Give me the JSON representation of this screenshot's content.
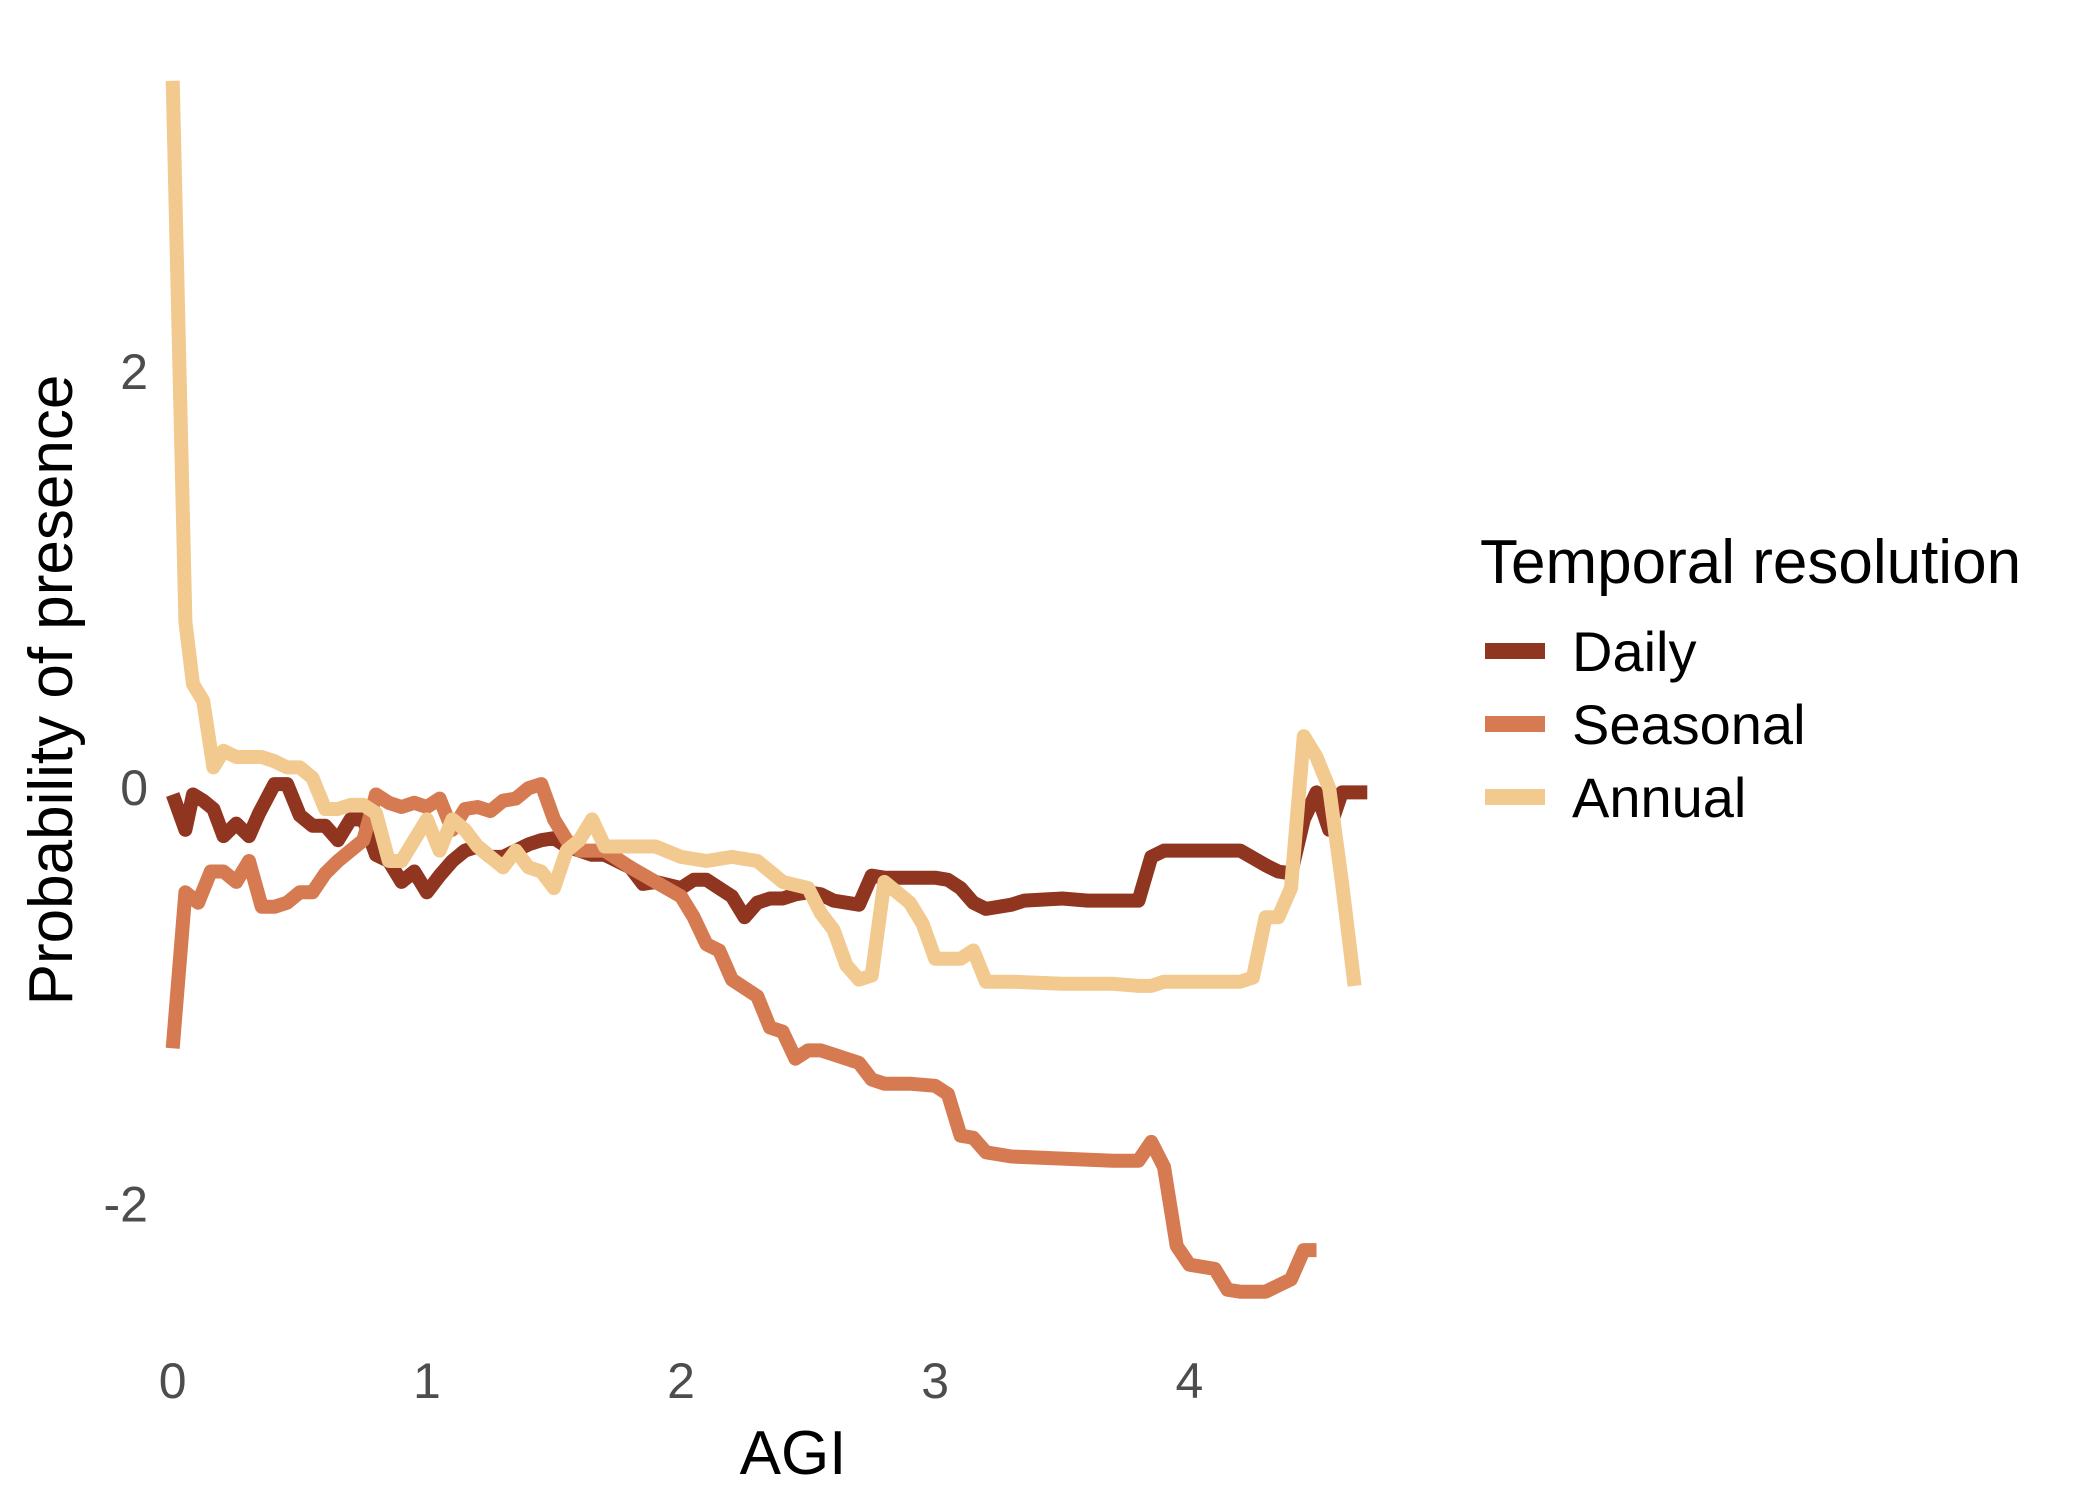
{
  "chart_data": {
    "type": "line",
    "title": "",
    "xlabel": "AGI",
    "ylabel": "Probability of presence",
    "xlim": [
      -0.05,
      4.75
    ],
    "ylim": [
      -2.7,
      3.5
    ],
    "x_ticks": [
      0,
      1,
      2,
      3,
      4
    ],
    "y_ticks": [
      -2,
      0,
      2
    ],
    "grid": false,
    "legend": {
      "title": "Temporal resolution",
      "position": "right"
    },
    "series": [
      {
        "name": "Daily",
        "color": "#8F3520",
        "points": [
          [
            0.0,
            -0.03
          ],
          [
            0.05,
            -0.2
          ],
          [
            0.08,
            -0.03
          ],
          [
            0.12,
            -0.06
          ],
          [
            0.16,
            -0.1
          ],
          [
            0.2,
            -0.23
          ],
          [
            0.25,
            -0.17
          ],
          [
            0.3,
            -0.23
          ],
          [
            0.34,
            -0.12
          ],
          [
            0.4,
            0.02
          ],
          [
            0.45,
            0.02
          ],
          [
            0.5,
            -0.13
          ],
          [
            0.55,
            -0.18
          ],
          [
            0.6,
            -0.18
          ],
          [
            0.65,
            -0.25
          ],
          [
            0.7,
            -0.15
          ],
          [
            0.75,
            -0.15
          ],
          [
            0.8,
            -0.32
          ],
          [
            0.85,
            -0.35
          ],
          [
            0.9,
            -0.45
          ],
          [
            0.95,
            -0.4
          ],
          [
            1.0,
            -0.5
          ],
          [
            1.05,
            -0.42
          ],
          [
            1.1,
            -0.35
          ],
          [
            1.15,
            -0.3
          ],
          [
            1.2,
            -0.28
          ],
          [
            1.25,
            -0.33
          ],
          [
            1.3,
            -0.33
          ],
          [
            1.35,
            -0.3
          ],
          [
            1.4,
            -0.27
          ],
          [
            1.45,
            -0.25
          ],
          [
            1.5,
            -0.24
          ],
          [
            1.55,
            -0.28
          ],
          [
            1.6,
            -0.3
          ],
          [
            1.65,
            -0.32
          ],
          [
            1.7,
            -0.32
          ],
          [
            1.8,
            -0.38
          ],
          [
            1.85,
            -0.46
          ],
          [
            1.9,
            -0.45
          ],
          [
            2.0,
            -0.48
          ],
          [
            2.05,
            -0.44
          ],
          [
            2.1,
            -0.44
          ],
          [
            2.2,
            -0.52
          ],
          [
            2.25,
            -0.62
          ],
          [
            2.3,
            -0.55
          ],
          [
            2.35,
            -0.53
          ],
          [
            2.4,
            -0.53
          ],
          [
            2.45,
            -0.51
          ],
          [
            2.5,
            -0.5
          ],
          [
            2.55,
            -0.51
          ],
          [
            2.6,
            -0.54
          ],
          [
            2.7,
            -0.56
          ],
          [
            2.75,
            -0.42
          ],
          [
            2.8,
            -0.43
          ],
          [
            2.9,
            -0.43
          ],
          [
            3.0,
            -0.43
          ],
          [
            3.05,
            -0.44
          ],
          [
            3.1,
            -0.48
          ],
          [
            3.15,
            -0.55
          ],
          [
            3.2,
            -0.58
          ],
          [
            3.3,
            -0.56
          ],
          [
            3.35,
            -0.54
          ],
          [
            3.5,
            -0.53
          ],
          [
            3.6,
            -0.54
          ],
          [
            3.8,
            -0.54
          ],
          [
            3.85,
            -0.33
          ],
          [
            3.9,
            -0.3
          ],
          [
            4.0,
            -0.3
          ],
          [
            4.1,
            -0.3
          ],
          [
            4.2,
            -0.3
          ],
          [
            4.3,
            -0.37
          ],
          [
            4.35,
            -0.4
          ],
          [
            4.4,
            -0.41
          ],
          [
            4.45,
            -0.15
          ],
          [
            4.5,
            -0.02
          ],
          [
            4.55,
            -0.2
          ],
          [
            4.6,
            -0.02
          ],
          [
            4.7,
            -0.02
          ]
        ]
      },
      {
        "name": "Seasonal",
        "color": "#D67A52",
        "points": [
          [
            0.0,
            -1.25
          ],
          [
            0.05,
            -0.5
          ],
          [
            0.1,
            -0.55
          ],
          [
            0.15,
            -0.4
          ],
          [
            0.2,
            -0.4
          ],
          [
            0.25,
            -0.45
          ],
          [
            0.3,
            -0.35
          ],
          [
            0.35,
            -0.57
          ],
          [
            0.4,
            -0.57
          ],
          [
            0.45,
            -0.55
          ],
          [
            0.5,
            -0.5
          ],
          [
            0.55,
            -0.5
          ],
          [
            0.6,
            -0.41
          ],
          [
            0.65,
            -0.35
          ],
          [
            0.7,
            -0.3
          ],
          [
            0.75,
            -0.25
          ],
          [
            0.8,
            -0.03
          ],
          [
            0.85,
            -0.07
          ],
          [
            0.9,
            -0.09
          ],
          [
            0.95,
            -0.07
          ],
          [
            1.0,
            -0.09
          ],
          [
            1.05,
            -0.05
          ],
          [
            1.1,
            -0.2
          ],
          [
            1.15,
            -0.1
          ],
          [
            1.2,
            -0.09
          ],
          [
            1.25,
            -0.11
          ],
          [
            1.3,
            -0.06
          ],
          [
            1.35,
            -0.05
          ],
          [
            1.4,
            0.0
          ],
          [
            1.45,
            0.02
          ],
          [
            1.5,
            -0.15
          ],
          [
            1.55,
            -0.25
          ],
          [
            1.6,
            -0.3
          ],
          [
            1.7,
            -0.3
          ],
          [
            1.8,
            -0.38
          ],
          [
            1.9,
            -0.45
          ],
          [
            2.0,
            -0.52
          ],
          [
            2.05,
            -0.62
          ],
          [
            2.1,
            -0.75
          ],
          [
            2.15,
            -0.78
          ],
          [
            2.2,
            -0.92
          ],
          [
            2.3,
            -1.0
          ],
          [
            2.35,
            -1.15
          ],
          [
            2.4,
            -1.17
          ],
          [
            2.45,
            -1.3
          ],
          [
            2.5,
            -1.26
          ],
          [
            2.55,
            -1.26
          ],
          [
            2.6,
            -1.28
          ],
          [
            2.7,
            -1.32
          ],
          [
            2.75,
            -1.4
          ],
          [
            2.8,
            -1.42
          ],
          [
            2.9,
            -1.42
          ],
          [
            3.0,
            -1.43
          ],
          [
            3.05,
            -1.47
          ],
          [
            3.1,
            -1.67
          ],
          [
            3.15,
            -1.68
          ],
          [
            3.2,
            -1.75
          ],
          [
            3.3,
            -1.77
          ],
          [
            3.5,
            -1.78
          ],
          [
            3.7,
            -1.79
          ],
          [
            3.8,
            -1.79
          ],
          [
            3.85,
            -1.7
          ],
          [
            3.9,
            -1.82
          ],
          [
            3.95,
            -2.2
          ],
          [
            4.0,
            -2.29
          ],
          [
            4.1,
            -2.31
          ],
          [
            4.15,
            -2.41
          ],
          [
            4.2,
            -2.42
          ],
          [
            4.3,
            -2.42
          ],
          [
            4.35,
            -2.39
          ],
          [
            4.4,
            -2.36
          ],
          [
            4.45,
            -2.22
          ],
          [
            4.5,
            -2.22
          ]
        ]
      },
      {
        "name": "Annual",
        "color": "#F2C98E",
        "points": [
          [
            0.0,
            3.4
          ],
          [
            0.05,
            0.8
          ],
          [
            0.08,
            0.5
          ],
          [
            0.12,
            0.42
          ],
          [
            0.16,
            0.1
          ],
          [
            0.2,
            0.18
          ],
          [
            0.25,
            0.15
          ],
          [
            0.3,
            0.15
          ],
          [
            0.35,
            0.15
          ],
          [
            0.4,
            0.13
          ],
          [
            0.45,
            0.1
          ],
          [
            0.5,
            0.1
          ],
          [
            0.55,
            0.05
          ],
          [
            0.6,
            -0.1
          ],
          [
            0.65,
            -0.1
          ],
          [
            0.7,
            -0.08
          ],
          [
            0.75,
            -0.08
          ],
          [
            0.8,
            -0.12
          ],
          [
            0.85,
            -0.35
          ],
          [
            0.9,
            -0.35
          ],
          [
            0.95,
            -0.25
          ],
          [
            1.0,
            -0.15
          ],
          [
            1.05,
            -0.3
          ],
          [
            1.1,
            -0.15
          ],
          [
            1.15,
            -0.2
          ],
          [
            1.2,
            -0.28
          ],
          [
            1.25,
            -0.33
          ],
          [
            1.3,
            -0.38
          ],
          [
            1.35,
            -0.3
          ],
          [
            1.4,
            -0.38
          ],
          [
            1.45,
            -0.4
          ],
          [
            1.5,
            -0.48
          ],
          [
            1.55,
            -0.3
          ],
          [
            1.6,
            -0.25
          ],
          [
            1.65,
            -0.15
          ],
          [
            1.7,
            -0.28
          ],
          [
            1.8,
            -0.28
          ],
          [
            1.9,
            -0.28
          ],
          [
            2.0,
            -0.33
          ],
          [
            2.1,
            -0.35
          ],
          [
            2.2,
            -0.33
          ],
          [
            2.3,
            -0.35
          ],
          [
            2.4,
            -0.45
          ],
          [
            2.5,
            -0.48
          ],
          [
            2.55,
            -0.6
          ],
          [
            2.6,
            -0.68
          ],
          [
            2.65,
            -0.85
          ],
          [
            2.7,
            -0.92
          ],
          [
            2.75,
            -0.9
          ],
          [
            2.8,
            -0.45
          ],
          [
            2.85,
            -0.5
          ],
          [
            2.9,
            -0.55
          ],
          [
            2.95,
            -0.65
          ],
          [
            3.0,
            -0.82
          ],
          [
            3.1,
            -0.82
          ],
          [
            3.15,
            -0.78
          ],
          [
            3.2,
            -0.93
          ],
          [
            3.3,
            -0.93
          ],
          [
            3.5,
            -0.94
          ],
          [
            3.7,
            -0.94
          ],
          [
            3.8,
            -0.95
          ],
          [
            3.85,
            -0.95
          ],
          [
            3.9,
            -0.93
          ],
          [
            4.0,
            -0.93
          ],
          [
            4.1,
            -0.93
          ],
          [
            4.2,
            -0.93
          ],
          [
            4.25,
            -0.91
          ],
          [
            4.3,
            -0.62
          ],
          [
            4.35,
            -0.62
          ],
          [
            4.4,
            -0.48
          ],
          [
            4.45,
            0.25
          ],
          [
            4.5,
            0.15
          ],
          [
            4.55,
            0.0
          ],
          [
            4.6,
            -0.45
          ],
          [
            4.65,
            -0.95
          ]
        ]
      }
    ]
  }
}
